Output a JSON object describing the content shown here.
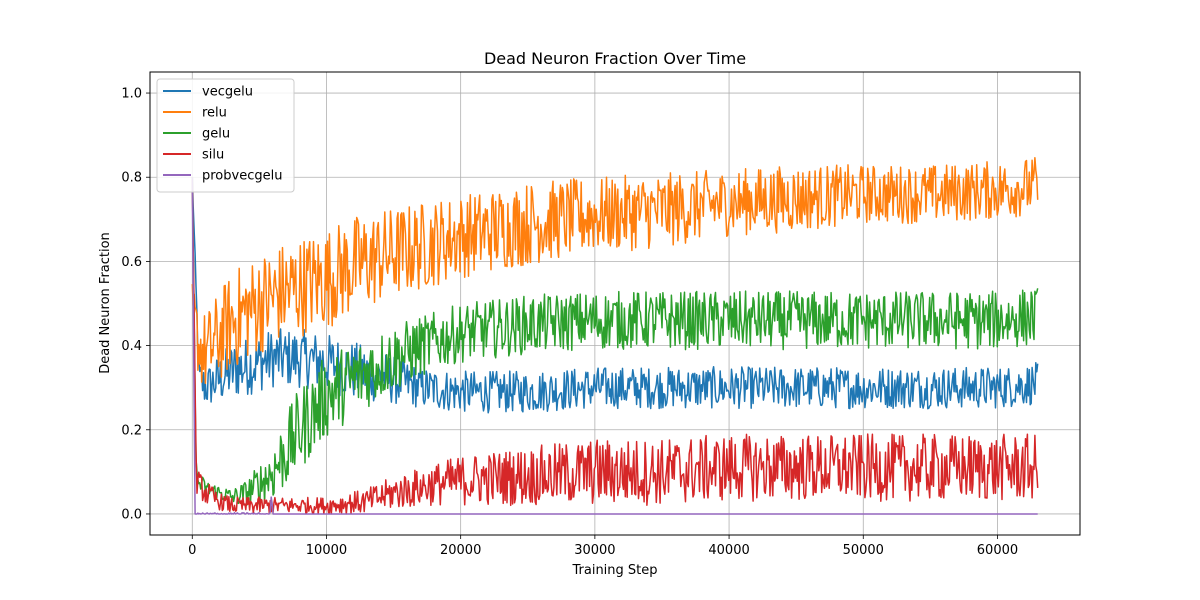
{
  "chart_data": {
    "type": "line",
    "title": "Dead Neuron Fraction Over Time",
    "xlabel": "Training Step",
    "ylabel": "Dead Neuron Fraction",
    "xlim": [
      -3150,
      66150
    ],
    "ylim": [
      -0.05,
      1.05
    ],
    "xticks": [
      0,
      10000,
      20000,
      30000,
      40000,
      50000,
      60000
    ],
    "xtick_labels": [
      "0",
      "10000",
      "20000",
      "30000",
      "40000",
      "50000",
      "60000"
    ],
    "yticks": [
      0.0,
      0.2,
      0.4,
      0.6,
      0.8,
      1.0
    ],
    "ytick_labels": [
      "0.0",
      "0.2",
      "0.4",
      "0.6",
      "0.8",
      "1.0"
    ],
    "grid": true,
    "legend_position": "top-left",
    "series": [
      {
        "name": "vecgelu",
        "color": "#1f77b4",
        "x": [
          0,
          500,
          1000,
          2000,
          3000,
          4000,
          5000,
          6000,
          7000,
          8000,
          10000,
          12000,
          15000,
          17000,
          20000,
          25000,
          30000,
          35000,
          40000,
          45000,
          50000,
          55000,
          60000,
          63000
        ],
        "center": [
          0.8,
          0.32,
          0.3,
          0.32,
          0.34,
          0.35,
          0.36,
          0.37,
          0.37,
          0.37,
          0.36,
          0.34,
          0.32,
          0.3,
          0.29,
          0.29,
          0.3,
          0.3,
          0.3,
          0.3,
          0.3,
          0.3,
          0.3,
          0.31
        ],
        "spread": [
          0.0,
          0.05,
          0.05,
          0.06,
          0.07,
          0.07,
          0.07,
          0.07,
          0.07,
          0.07,
          0.07,
          0.07,
          0.06,
          0.05,
          0.05,
          0.05,
          0.05,
          0.05,
          0.05,
          0.05,
          0.05,
          0.05,
          0.05,
          0.05
        ]
      },
      {
        "name": "relu",
        "color": "#ff7f0e",
        "x": [
          0,
          500,
          1000,
          2000,
          3000,
          5000,
          7000,
          10000,
          12000,
          15000,
          20000,
          25000,
          30000,
          35000,
          40000,
          45000,
          50000,
          55000,
          60000,
          63000
        ],
        "center": [
          0.5,
          0.4,
          0.38,
          0.42,
          0.46,
          0.5,
          0.53,
          0.56,
          0.59,
          0.62,
          0.66,
          0.69,
          0.71,
          0.72,
          0.74,
          0.75,
          0.76,
          0.76,
          0.77,
          0.78
        ],
        "spread": [
          0.05,
          0.09,
          0.1,
          0.11,
          0.12,
          0.12,
          0.12,
          0.12,
          0.12,
          0.11,
          0.1,
          0.1,
          0.09,
          0.09,
          0.08,
          0.08,
          0.07,
          0.07,
          0.07,
          0.07
        ]
      },
      {
        "name": "gelu",
        "color": "#2ca02c",
        "x": [
          0,
          300,
          1000,
          2000,
          3000,
          4000,
          5000,
          6000,
          7000,
          8000,
          9000,
          10000,
          12000,
          15000,
          18000,
          20000,
          25000,
          30000,
          35000,
          40000,
          45000,
          50000,
          55000,
          60000,
          63000
        ],
        "center": [
          0.8,
          0.08,
          0.06,
          0.05,
          0.04,
          0.05,
          0.07,
          0.1,
          0.15,
          0.2,
          0.24,
          0.28,
          0.32,
          0.37,
          0.41,
          0.43,
          0.45,
          0.46,
          0.46,
          0.46,
          0.46,
          0.46,
          0.46,
          0.46,
          0.47
        ],
        "spread": [
          0.0,
          0.03,
          0.02,
          0.02,
          0.02,
          0.03,
          0.05,
          0.07,
          0.09,
          0.1,
          0.1,
          0.1,
          0.09,
          0.08,
          0.07,
          0.07,
          0.07,
          0.07,
          0.07,
          0.07,
          0.07,
          0.07,
          0.07,
          0.07,
          0.07
        ]
      },
      {
        "name": "silu",
        "color": "#d62728",
        "x": [
          0,
          300,
          1000,
          2000,
          3000,
          5000,
          7000,
          10000,
          13000,
          15000,
          18000,
          20000,
          25000,
          30000,
          35000,
          40000,
          45000,
          50000,
          55000,
          60000,
          63000
        ],
        "center": [
          0.8,
          0.08,
          0.05,
          0.03,
          0.02,
          0.02,
          0.02,
          0.02,
          0.03,
          0.05,
          0.07,
          0.08,
          0.09,
          0.1,
          0.1,
          0.11,
          0.11,
          0.11,
          0.11,
          0.11,
          0.11
        ],
        "spread": [
          0.0,
          0.03,
          0.03,
          0.02,
          0.02,
          0.02,
          0.02,
          0.02,
          0.03,
          0.04,
          0.05,
          0.06,
          0.07,
          0.08,
          0.08,
          0.08,
          0.08,
          0.08,
          0.08,
          0.08,
          0.08
        ]
      },
      {
        "name": "probvecgelu",
        "color": "#9467bd",
        "x": [
          0,
          100,
          200,
          500,
          1000,
          5000,
          5800,
          5900,
          6000,
          10000,
          20000,
          30000,
          40000,
          50000,
          60000,
          63000
        ],
        "center": [
          0.8,
          0.4,
          0.0,
          0.0,
          0.0,
          0.0,
          0.0,
          0.05,
          0.0,
          0.0,
          0.0,
          0.0,
          0.0,
          0.0,
          0.0,
          0.0
        ],
        "spread": [
          0,
          0,
          0,
          0.003,
          0.003,
          0.003,
          0,
          0,
          0,
          0,
          0,
          0,
          0,
          0,
          0,
          0
        ]
      }
    ]
  }
}
